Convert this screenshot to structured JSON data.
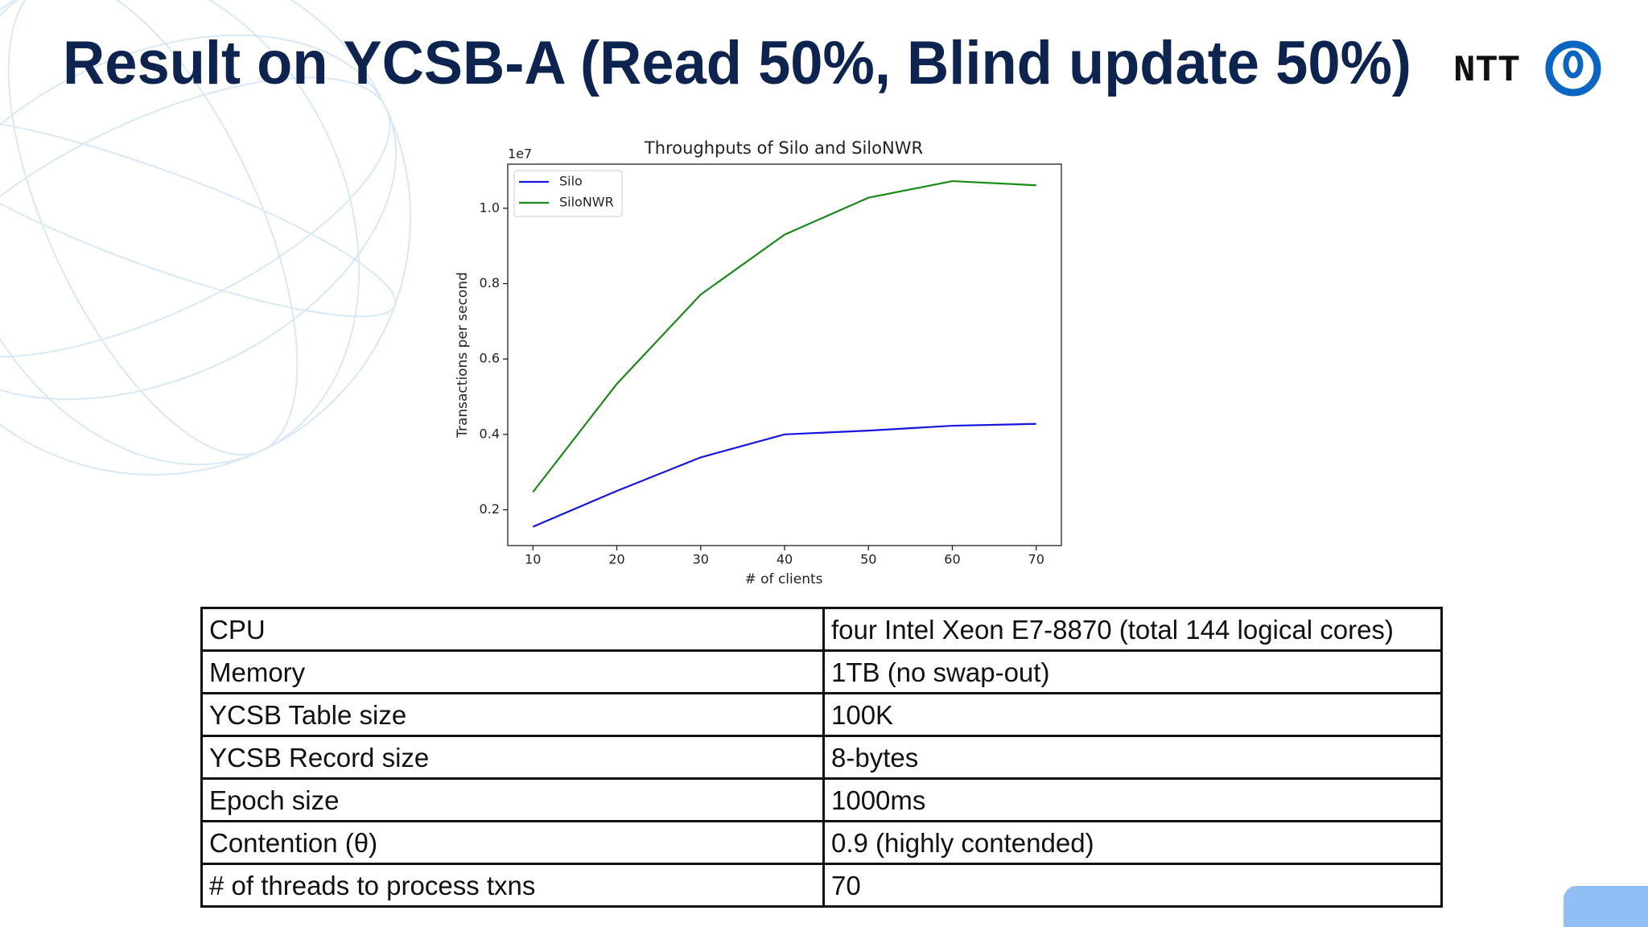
{
  "header": {
    "title": "Result on YCSB-A (Read 50%, Blind update 50%)",
    "logo": "NTT"
  },
  "chart_data": {
    "type": "line",
    "title": "Throughputs of Silo and SiloNWR",
    "x_label": "# of clients",
    "y_label": "Transactions per second",
    "y_offset_label": "1e7",
    "x": [
      10,
      20,
      30,
      40,
      50,
      60,
      70
    ],
    "series": [
      {
        "name": "Silo",
        "color": "#1515e0",
        "values": [
          0.155,
          0.25,
          0.339,
          0.4,
          0.41,
          0.423,
          0.428
        ]
      },
      {
        "name": "SiloNWR",
        "color": "#1a8a1a",
        "values": [
          0.247,
          0.534,
          0.771,
          0.93,
          1.028,
          1.072,
          1.061
        ]
      }
    ],
    "xlim": [
      7,
      73
    ],
    "xticks": [
      10,
      20,
      30,
      40,
      50,
      60,
      70
    ],
    "ylim": [
      0.105,
      1.117
    ],
    "yticks": [
      0.2,
      0.4,
      0.6,
      0.8,
      {
        "value": 1,
        "label": "1.0"
      }
    ],
    "legend": "upper left",
    "grid": false
  },
  "table": {
    "rows": [
      [
        "CPU",
        "four Intel Xeon E7-8870 (total 144 logical cores)"
      ],
      [
        "Memory",
        "1TB (no swap-out)"
      ],
      [
        "YCSB Table size",
        "100K"
      ],
      [
        "YCSB Record size",
        "8-bytes"
      ],
      [
        "Epoch size",
        "1000ms"
      ],
      [
        "Contention (θ)",
        "0.9 (highly contended)"
      ],
      [
        "# of threads to process txns",
        "70"
      ]
    ]
  }
}
